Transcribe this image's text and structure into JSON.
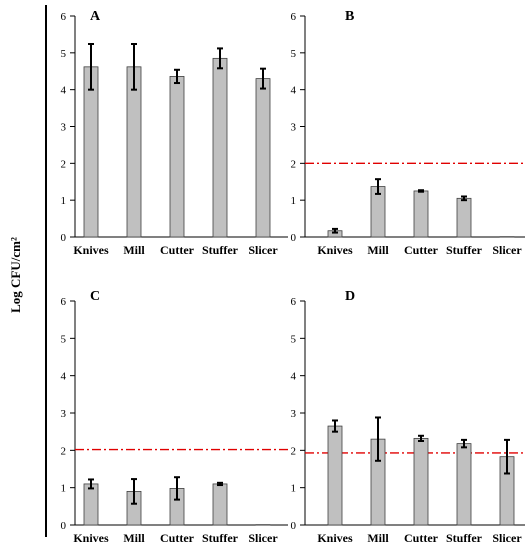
{
  "figure": {
    "ylabel": "Log CFU/cm²",
    "reference_line_color": "#e00000",
    "bar_fill": "#c0c0c0",
    "bar_stroke": "#404040"
  },
  "chart_data": [
    {
      "type": "bar",
      "panel": "A",
      "categories": [
        "Knives",
        "Mill",
        "Cutter",
        "Stuffer",
        "Slicer"
      ],
      "values": [
        4.62,
        4.62,
        4.36,
        4.85,
        4.3
      ],
      "errors": [
        0.62,
        0.62,
        0.18,
        0.27,
        0.27
      ],
      "reference_line": null,
      "ylim": [
        0,
        6
      ],
      "yticks": [
        0,
        1,
        2,
        3,
        4,
        5,
        6
      ],
      "ylabel": "Log CFU/cm²",
      "xlabel": ""
    },
    {
      "type": "bar",
      "panel": "B",
      "categories": [
        "Knives",
        "Mill",
        "Cutter",
        "Stuffer",
        "Slicer"
      ],
      "values": [
        0.17,
        1.37,
        1.25,
        1.05,
        0.01
      ],
      "errors": [
        0.05,
        0.2,
        0.02,
        0.05,
        0.0
      ],
      "reference_line": 2.0,
      "ylim": [
        0,
        6
      ],
      "yticks": [
        0,
        1,
        2,
        3,
        4,
        5,
        6
      ],
      "ylabel": "Log CFU/cm²",
      "xlabel": ""
    },
    {
      "type": "bar",
      "panel": "C",
      "categories": [
        "Knives",
        "Mill",
        "Cutter",
        "Stuffer",
        "Slicer"
      ],
      "values": [
        1.1,
        0.9,
        0.98,
        1.1,
        0.01
      ],
      "errors": [
        0.12,
        0.33,
        0.3,
        0.03,
        0.0
      ],
      "reference_line": 2.02,
      "ylim": [
        0,
        6
      ],
      "yticks": [
        0,
        1,
        2,
        3,
        4,
        5,
        6
      ],
      "ylabel": "Log CFU/cm²",
      "xlabel": ""
    },
    {
      "type": "bar",
      "panel": "D",
      "categories": [
        "Knives",
        "Mill",
        "Cutter",
        "Stuffer",
        "Slicer"
      ],
      "values": [
        2.65,
        2.3,
        2.32,
        2.18,
        1.83
      ],
      "errors": [
        0.15,
        0.58,
        0.07,
        0.1,
        0.45
      ],
      "reference_line": 1.93,
      "ylim": [
        0,
        6
      ],
      "yticks": [
        0,
        1,
        2,
        3,
        4,
        5,
        6
      ],
      "ylabel": "Log CFU/cm²",
      "xlabel": ""
    }
  ]
}
